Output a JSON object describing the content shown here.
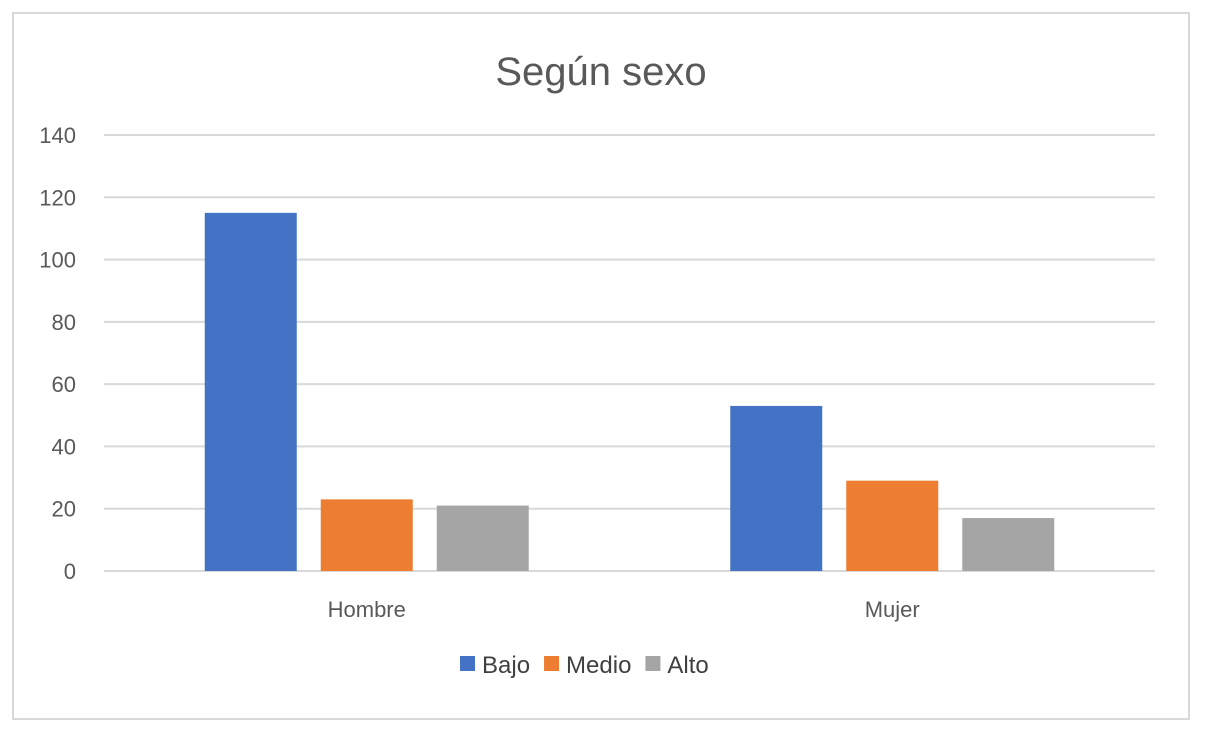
{
  "chart_data": {
    "type": "bar",
    "title": "Según sexo",
    "categories": [
      "Hombre",
      "Mujer"
    ],
    "series": [
      {
        "name": "Bajo",
        "values": [
          115,
          53
        ],
        "color": "#4472c4"
      },
      {
        "name": "Medio",
        "values": [
          23,
          29
        ],
        "color": "#ed7d31"
      },
      {
        "name": "Alto",
        "values": [
          21,
          17
        ],
        "color": "#a5a5a5"
      }
    ],
    "yticks": [
      "0",
      "20",
      "40",
      "60",
      "80",
      "100",
      "120",
      "140"
    ],
    "ylim": [
      0,
      140
    ],
    "ytick_step": 20,
    "xlabel": "",
    "ylabel": "",
    "grid": true,
    "legend_position": "bottom"
  }
}
